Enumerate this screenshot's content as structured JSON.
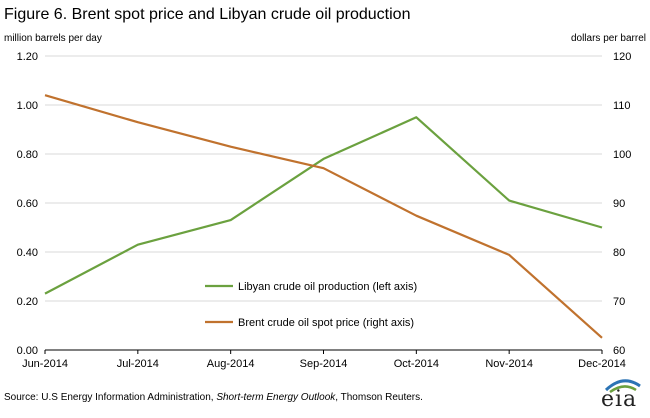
{
  "title": "Figure 6. Brent spot price and Libyan crude oil production",
  "chart_data": {
    "type": "line",
    "categories": [
      "Jun-2014",
      "Jul-2014",
      "Aug-2014",
      "Sep-2014",
      "Oct-2014",
      "Nov-2014",
      "Dec-2014"
    ],
    "left_axis": {
      "label": "million barrels per day",
      "range": [
        0,
        1.2
      ],
      "ticks": [
        "0.00",
        "0.20",
        "0.40",
        "0.60",
        "0.80",
        "1.00",
        "1.20"
      ]
    },
    "right_axis": {
      "label": "dollars per barrel",
      "range": [
        60,
        120
      ],
      "ticks": [
        "60",
        "70",
        "80",
        "90",
        "100",
        "110",
        "120"
      ]
    },
    "series": [
      {
        "name": "Libyan crude oil production (left axis)",
        "axis": "left",
        "color": "#6ba13f",
        "values": [
          0.23,
          0.43,
          0.53,
          0.78,
          0.95,
          0.61,
          0.5
        ]
      },
      {
        "name": "Brent crude oil spot price (right axis)",
        "axis": "right",
        "color": "#c0722e",
        "values": [
          112,
          106.5,
          101.5,
          97.1,
          87.4,
          79.4,
          62.5
        ]
      }
    ],
    "grid": true
  },
  "source": {
    "prefix": "Source: U.S Energy Information Administration, ",
    "italic": "Short-term Energy Outlook",
    "suffix": ", Thomson Reuters."
  },
  "logo": {
    "text": "eia",
    "color_blue": "#2c74b5",
    "color_green": "#6ba13f"
  }
}
